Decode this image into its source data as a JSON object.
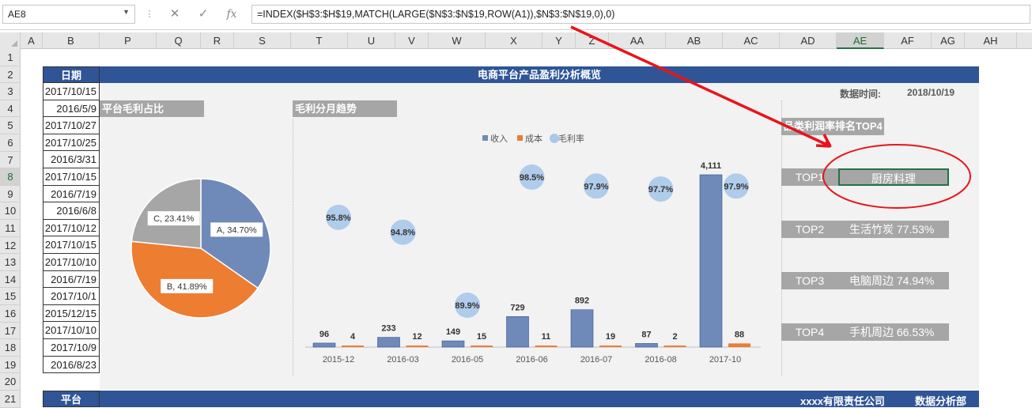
{
  "namebox": "AE8",
  "formula": "=INDEX($H$3:$H$19,MATCH(LARGE($N$3:$N$19,ROW(A1)),$N$3:$N$19,0),0)",
  "columns": [
    "A",
    "B",
    "P",
    "Q",
    "R",
    "S",
    "T",
    "U",
    "V",
    "W",
    "X",
    "Y",
    "Z",
    "AA",
    "AB",
    "AC",
    "AD",
    "AE",
    "AF",
    "AG",
    "AH"
  ],
  "rows": [
    "1",
    "2",
    "3",
    "4",
    "5",
    "6",
    "7",
    "8",
    "9",
    "10",
    "11",
    "12",
    "13",
    "14",
    "15",
    "16",
    "17",
    "18",
    "19",
    "20",
    "21"
  ],
  "date_header": "日期",
  "dates": [
    "2017/10/15",
    "2016/5/9",
    "2017/10/27",
    "2017/10/25",
    "2016/3/31",
    "2017/10/15",
    "2016/7/19",
    "2016/6/8",
    "2017/10/12",
    "2017/10/15",
    "2017/10/10",
    "2016/7/19",
    "2017/10/1",
    "2015/12/15",
    "2017/10/10",
    "2017/10/9",
    "2016/8/23"
  ],
  "dashboard_title": "电商平台产品盈利分析概览",
  "data_time_label": "数据时间:",
  "data_time_value": "2018/10/19",
  "pie_section_title": "平台毛利占比",
  "trend_section_title": "毛利分月趋势",
  "rank_section_title": "品类利润率排名TOP4",
  "footer_left": "平台",
  "footer_company": "xxxx有限责任公司",
  "footer_dept": "数据分析部",
  "top_ranks": [
    {
      "rank": "TOP1",
      "name": "厨房料理",
      "rate": ""
    },
    {
      "rank": "TOP2",
      "name": "生活竹炭",
      "rate": "77.53%"
    },
    {
      "rank": "TOP3",
      "name": "电脑周边",
      "rate": "74.94%"
    },
    {
      "rank": "TOP4",
      "name": "手机周边",
      "rate": "66.53%"
    }
  ],
  "colors": {
    "blue": "#2f5597",
    "bar_blue": "#6f89b8",
    "orange": "#ed7d31",
    "grey": "#a6a6a6",
    "bubble": "#a9c8ea",
    "arrow": "#e8141b"
  },
  "chart_data": [
    {
      "type": "pie",
      "labels": [
        "A, 34.70%",
        "B, 41.89%",
        "C, 23.41%"
      ],
      "categories": [
        "A",
        "B",
        "C"
      ],
      "values": [
        34.7,
        41.89,
        23.41
      ]
    },
    {
      "type": "bar",
      "categories": [
        "2015-12",
        "2016-03",
        "2016-05",
        "2016-06",
        "2016-07",
        "2016-08",
        "2017-10"
      ],
      "legend": [
        "收入",
        "成本",
        "毛利率"
      ],
      "series": [
        {
          "name": "收入",
          "values": [
            96,
            233,
            149,
            729,
            892,
            87,
            4111
          ],
          "labels": [
            "96",
            "233",
            "149",
            "729",
            "892",
            "87",
            "4,111"
          ]
        },
        {
          "name": "成本",
          "values": [
            4,
            12,
            15,
            11,
            19,
            2,
            88
          ],
          "labels": [
            "4",
            "12",
            "15",
            "11",
            "19",
            "2",
            "88"
          ]
        },
        {
          "name": "毛利率",
          "values": [
            95.8,
            94.8,
            89.9,
            98.5,
            97.9,
            97.7,
            97.9
          ],
          "labels": [
            "95.8%",
            "94.8%",
            "89.9%",
            "98.5%",
            "97.9%",
            "97.7%",
            "97.9%"
          ]
        }
      ]
    }
  ]
}
